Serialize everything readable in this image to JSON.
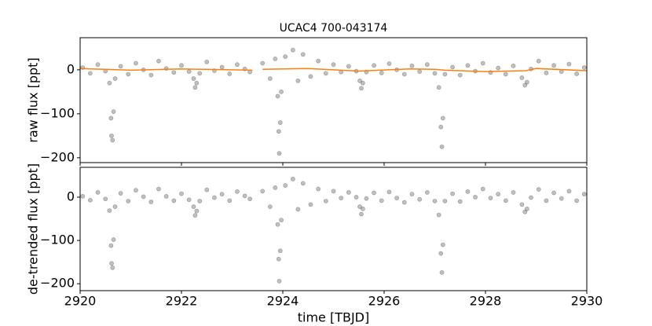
{
  "chart_data": [
    {
      "type": "scatter",
      "title": "UCAC4 700-043174",
      "ylabel": "raw flux [ppt]",
      "xlim": [
        2920,
        2930
      ],
      "xticks": [
        2920,
        2922,
        2924,
        2926,
        2928,
        2930
      ],
      "ylim": [
        -211,
        73
      ],
      "yticks": [
        {
          "value": -200,
          "label": "−200"
        },
        {
          "value": -100,
          "label": "−100"
        },
        0
      ],
      "series": [
        {
          "color": "#000000",
          "x": [
            2920.05,
            2920.2,
            2920.35,
            2920.5,
            2920.58,
            2920.61,
            2920.62,
            2920.64,
            2920.66,
            2920.69,
            2920.8,
            2920.95,
            2921.1,
            2921.25,
            2921.4,
            2921.55,
            2921.7,
            2921.85,
            2922.0,
            2922.15,
            2922.24,
            2922.27,
            2922.3,
            2922.36,
            2922.5,
            2922.65,
            2922.8,
            2922.95,
            2923.1,
            2923.25,
            2923.35,
            2923.6,
            2923.75,
            2923.85,
            2923.9,
            2923.92,
            2923.93,
            2923.95,
            2923.97,
            2924.05,
            2924.2,
            2924.3,
            2924.4,
            2924.55,
            2924.7,
            2924.85,
            2925.0,
            2925.15,
            2925.3,
            2925.45,
            2925.52,
            2925.55,
            2925.58,
            2925.65,
            2925.8,
            2925.95,
            2926.1,
            2926.25,
            2926.4,
            2926.55,
            2926.7,
            2926.85,
            2927.0,
            2927.08,
            2927.12,
            2927.14,
            2927.16,
            2927.2,
            2927.35,
            2927.5,
            2927.65,
            2927.8,
            2927.95,
            2928.1,
            2928.25,
            2928.4,
            2928.55,
            2928.72,
            2928.78,
            2928.82,
            2928.9,
            2929.05,
            2929.2,
            2929.35,
            2929.5,
            2929.65,
            2929.8,
            2929.95
          ],
          "values": [
            5,
            -8,
            12,
            -3,
            -30,
            -110,
            -150,
            -160,
            -95,
            -20,
            8,
            -10,
            15,
            0,
            -12,
            20,
            3,
            -6,
            10,
            -4,
            -20,
            -40,
            -30,
            -8,
            18,
            -2,
            6,
            -9,
            12,
            2,
            -5,
            15,
            -20,
            25,
            -60,
            -140,
            -190,
            -120,
            -50,
            30,
            45,
            -25,
            35,
            -15,
            20,
            -8,
            12,
            -5,
            8,
            -3,
            -25,
            -42,
            -30,
            -5,
            10,
            -7,
            14,
            0,
            -10,
            9,
            -4,
            12,
            -8,
            -40,
            -130,
            -175,
            -110,
            -10,
            6,
            -12,
            10,
            -3,
            15,
            -6,
            4,
            -10,
            9,
            -18,
            -35,
            -28,
            2,
            20,
            -7,
            10,
            -4,
            13,
            -9,
            5
          ]
        },
        {
          "type": "line",
          "color": "#ff7f0e",
          "x": [
            2920,
            2921,
            2922,
            2923.4,
            2923.5,
            2923.6,
            2924.5,
            2925.5,
            2926.5,
            2927,
            2927.2,
            2928,
            2928.8,
            2929,
            2930
          ],
          "values": [
            3,
            -1,
            2,
            -1,
            null,
            1,
            3,
            -3,
            2,
            1,
            -1,
            -4,
            -2,
            3,
            -2
          ]
        }
      ]
    },
    {
      "type": "scatter",
      "ylabel": "de-trended flux [ppt]",
      "xlabel": "time [TBJD]",
      "xlim": [
        2920,
        2930
      ],
      "xticks": [
        2920,
        2922,
        2924,
        2926,
        2928,
        2930
      ],
      "ylim": [
        -216,
        69
      ],
      "yticks": [
        {
          "value": -200,
          "label": "−200"
        },
        {
          "value": -100,
          "label": "−100"
        },
        0
      ],
      "series": [
        {
          "color": "#000000",
          "x": [
            2920.05,
            2920.2,
            2920.35,
            2920.5,
            2920.58,
            2920.61,
            2920.62,
            2920.64,
            2920.66,
            2920.69,
            2920.8,
            2920.95,
            2921.1,
            2921.25,
            2921.4,
            2921.55,
            2921.7,
            2921.85,
            2922.0,
            2922.15,
            2922.24,
            2922.27,
            2922.3,
            2922.36,
            2922.5,
            2922.65,
            2922.8,
            2922.95,
            2923.1,
            2923.25,
            2923.35,
            2923.6,
            2923.75,
            2923.85,
            2923.9,
            2923.92,
            2923.93,
            2923.95,
            2923.97,
            2924.05,
            2924.2,
            2924.3,
            2924.4,
            2924.55,
            2924.7,
            2924.85,
            2925.0,
            2925.15,
            2925.3,
            2925.45,
            2925.52,
            2925.55,
            2925.58,
            2925.65,
            2925.8,
            2925.95,
            2926.1,
            2926.25,
            2926.4,
            2926.55,
            2926.7,
            2926.85,
            2927.0,
            2927.08,
            2927.12,
            2927.14,
            2927.16,
            2927.2,
            2927.35,
            2927.5,
            2927.65,
            2927.8,
            2927.95,
            2928.1,
            2928.25,
            2928.4,
            2928.55,
            2928.72,
            2928.78,
            2928.82,
            2928.9,
            2929.05,
            2929.2,
            2929.35,
            2929.5,
            2929.65,
            2929.8,
            2929.95
          ],
          "values": [
            2,
            -7,
            11,
            -4,
            -31,
            -112,
            -153,
            -163,
            -98,
            -22,
            9,
            -9,
            16,
            1,
            -11,
            19,
            2,
            -8,
            8,
            -6,
            -22,
            -42,
            -32,
            -9,
            17,
            -1,
            7,
            -8,
            13,
            3,
            -4,
            14,
            -22,
            22,
            -63,
            -143,
            -194,
            -124,
            -53,
            27,
            42,
            -28,
            32,
            -17,
            19,
            -9,
            14,
            -2,
            11,
            0,
            -22,
            -39,
            -27,
            -3,
            10,
            -8,
            12,
            -2,
            -12,
            7,
            -5,
            11,
            -9,
            -41,
            -130,
            -174,
            -110,
            -9,
            8,
            -10,
            13,
            0,
            19,
            -2,
            7,
            -8,
            11,
            -17,
            -34,
            -27,
            -1,
            18,
            -8,
            10,
            -3,
            14,
            -8,
            7
          ]
        }
      ]
    }
  ]
}
